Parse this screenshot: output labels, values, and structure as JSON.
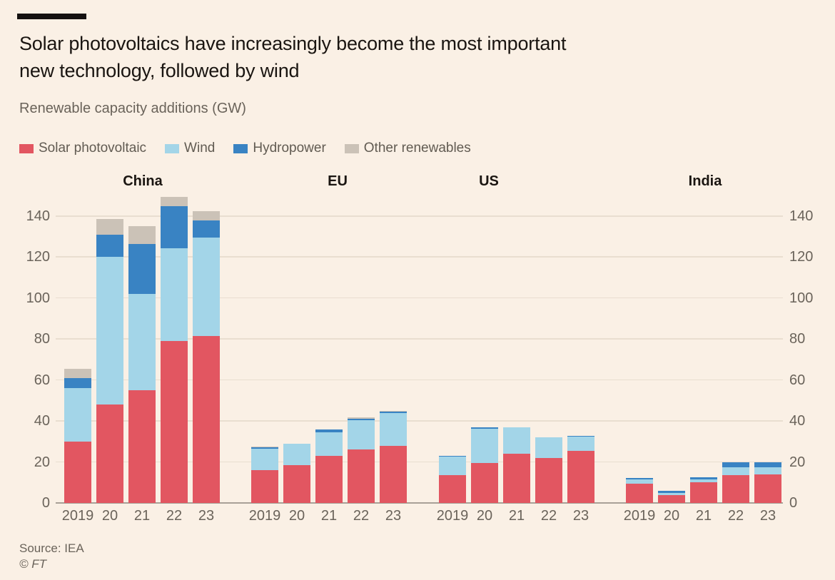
{
  "header": {
    "title_line1": "Solar photovoltaics have increasingly become the most important",
    "title_line2": "new technology, followed by wind",
    "subtitle": "Renewable capacity additions (GW)"
  },
  "legend": [
    {
      "key": "solar",
      "label": "Solar photovoltaic",
      "color": "#E25661"
    },
    {
      "key": "wind",
      "label": "Wind",
      "color": "#A3D5E8"
    },
    {
      "key": "hydro",
      "label": "Hydropower",
      "color": "#3983C3"
    },
    {
      "key": "other",
      "label": "Other renewables",
      "color": "#CBC2B7"
    }
  ],
  "footer": {
    "source": "Source: IEA",
    "copyright": "© FT"
  },
  "chart_data": {
    "type": "bar",
    "stacked": true,
    "title": "Solar photovoltaics have increasingly become the most important new technology, followed by wind",
    "subtitle": "Renewable capacity additions (GW)",
    "unit": "GW",
    "ylim": [
      0,
      150
    ],
    "y_ticks": [
      0,
      20,
      40,
      60,
      80,
      100,
      120,
      140
    ],
    "y_axis_both_sides": true,
    "grid": true,
    "legend_position": "top",
    "x_tick_labels": [
      "2019",
      "20",
      "21",
      "22",
      "23"
    ],
    "series_order": [
      "solar",
      "wind",
      "hydro",
      "other"
    ],
    "groups": [
      {
        "name": "China",
        "series": {
          "solar": [
            30,
            48,
            55,
            79,
            81.5
          ],
          "wind": [
            26,
            72,
            47,
            45.5,
            48
          ],
          "hydro": [
            5,
            11,
            24.5,
            20.5,
            8.5
          ],
          "other": [
            4.5,
            7.5,
            8.5,
            4.5,
            4.5
          ]
        }
      },
      {
        "name": "EU",
        "series": {
          "solar": [
            16,
            18.5,
            23,
            26,
            28
          ],
          "wind": [
            10.5,
            10.5,
            11.5,
            14.5,
            16
          ],
          "hydro": [
            0.8,
            0,
            1.5,
            0.7,
            0.7
          ],
          "other": [
            0.2,
            0,
            0,
            0.5,
            0.3
          ]
        }
      },
      {
        "name": "US",
        "series": {
          "solar": [
            13.5,
            19.5,
            24,
            22,
            25.5
          ],
          "wind": [
            9.2,
            16.8,
            13,
            10,
            6.8
          ],
          "hydro": [
            0.3,
            0.7,
            0,
            0,
            0.5
          ],
          "other": [
            0,
            0,
            0,
            0,
            0
          ]
        }
      },
      {
        "name": "India",
        "series": {
          "solar": [
            9.5,
            4,
            10,
            13.5,
            14
          ],
          "wind": [
            2,
            1,
            1.5,
            4,
            3.5
          ],
          "hydro": [
            0.8,
            1,
            1.2,
            2.5,
            2.5
          ],
          "other": [
            0,
            0,
            0,
            0,
            0
          ]
        }
      }
    ]
  }
}
